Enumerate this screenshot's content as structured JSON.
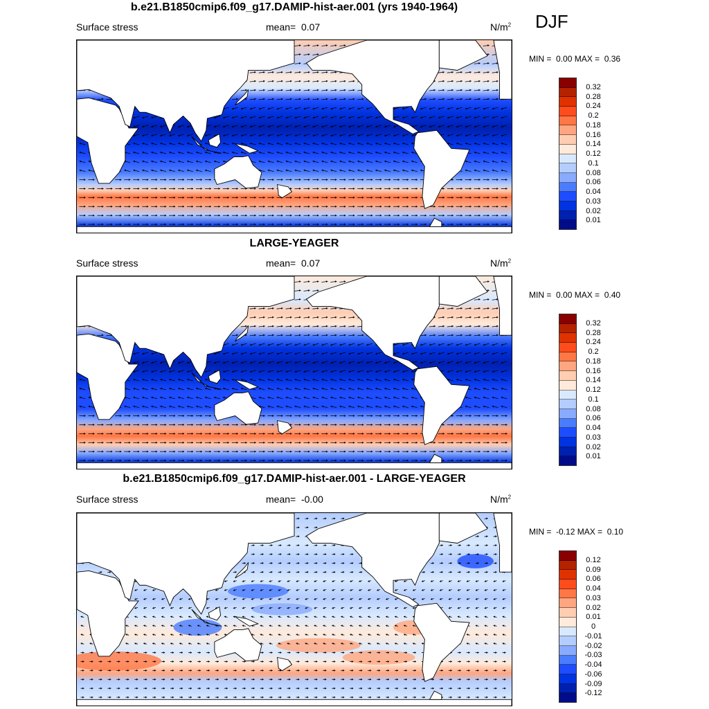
{
  "figure": {
    "season": "DJF"
  },
  "panels": [
    {
      "title": "b.e21.B1850cmip6.f09_g17.DAMIP-hist-aer.001 (yrs 1940-1964)",
      "variable": "Surface stress",
      "mean_label": "mean=",
      "mean_value": "0.07",
      "units": "N/m",
      "units_exp": "2",
      "min_label": "MIN =",
      "min_value": "0.00",
      "max_label": "MAX =",
      "max_value": "0.36",
      "colorbar": {
        "labels": [
          "0.32",
          "0.28",
          "0.24",
          "0.2",
          "0.18",
          "0.16",
          "0.14",
          "0.12",
          "0.1",
          "0.08",
          "0.06",
          "0.04",
          "0.03",
          "0.02",
          "0.01"
        ]
      }
    },
    {
      "title": "LARGE-YEAGER",
      "variable": "Surface stress",
      "mean_label": "mean=",
      "mean_value": "0.07",
      "units": "N/m",
      "units_exp": "2",
      "min_label": "MIN =",
      "min_value": "0.00",
      "max_label": "MAX =",
      "max_value": "0.40",
      "colorbar": {
        "labels": [
          "0.32",
          "0.28",
          "0.24",
          "0.2",
          "0.18",
          "0.16",
          "0.14",
          "0.12",
          "0.1",
          "0.08",
          "0.06",
          "0.04",
          "0.03",
          "0.02",
          "0.01"
        ]
      }
    },
    {
      "title": "b.e21.B1850cmip6.f09_g17.DAMIP-hist-aer.001 - LARGE-YEAGER",
      "variable": "Surface stress",
      "mean_label": "mean=",
      "mean_value": "-0.00",
      "units": "N/m",
      "units_exp": "2",
      "min_label": "MIN =",
      "min_value": "-0.12",
      "max_label": "MAX =",
      "max_value": "0.10",
      "colorbar": {
        "labels": [
          "0.12",
          "0.09",
          "0.06",
          "0.04",
          "0.03",
          "0.02",
          "0.01",
          "0",
          "-0.01",
          "-0.02",
          "-0.03",
          "-0.04",
          "-0.06",
          "-0.09",
          "-0.12"
        ]
      }
    }
  ],
  "palette": [
    "#8a0000",
    "#b52200",
    "#e03200",
    "#ff4c1c",
    "#ff7745",
    "#ffa680",
    "#ffcdb2",
    "#ffeadb",
    "#d8e9ff",
    "#b4cdff",
    "#88aaff",
    "#4a7cff",
    "#1e4dff",
    "#0133e0",
    "#0020b0",
    "#000c8a"
  ]
}
